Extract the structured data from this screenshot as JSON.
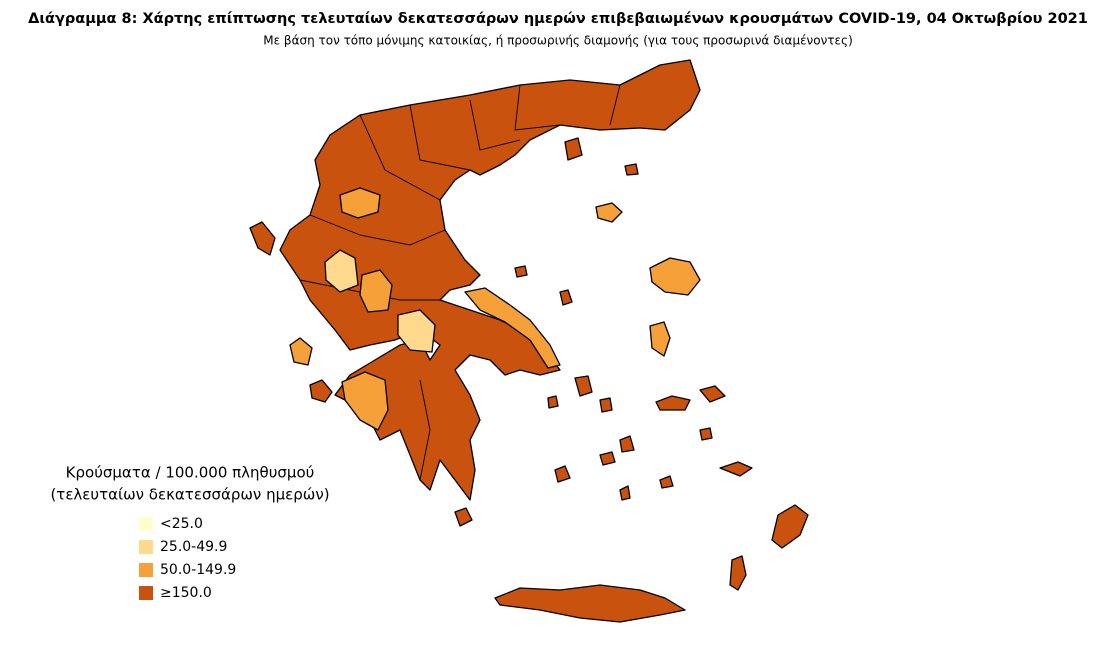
{
  "title": "Διάγραμμα 8: Χάρτης επίπτωσης τελευταίων δεκατεσσάρων ημερών επιβεβαιωμένων κρουσμάτων COVID-19, 04 Οκτωβρίου 2021",
  "subtitle": "Με βάση τον τόπο μόνιμης κατοικίας, ή προσωρινής διαμονής (για τους προσωρινά διαμένοντες)",
  "legend": {
    "title": [
      "Κρούσματα / 100.000 πληθυσμού",
      "(τελευταίων δεκατεσσάρων ημερών)"
    ],
    "items": [
      {
        "label": "<25.0",
        "color": "#ffffcc"
      },
      {
        "label": "25.0-49.9",
        "color": "#fed98e"
      },
      {
        "label": "50.0-149.9",
        "color": "#f6a03a"
      },
      {
        "label": "≥150.0",
        "color": "#c9520e"
      }
    ]
  }
}
